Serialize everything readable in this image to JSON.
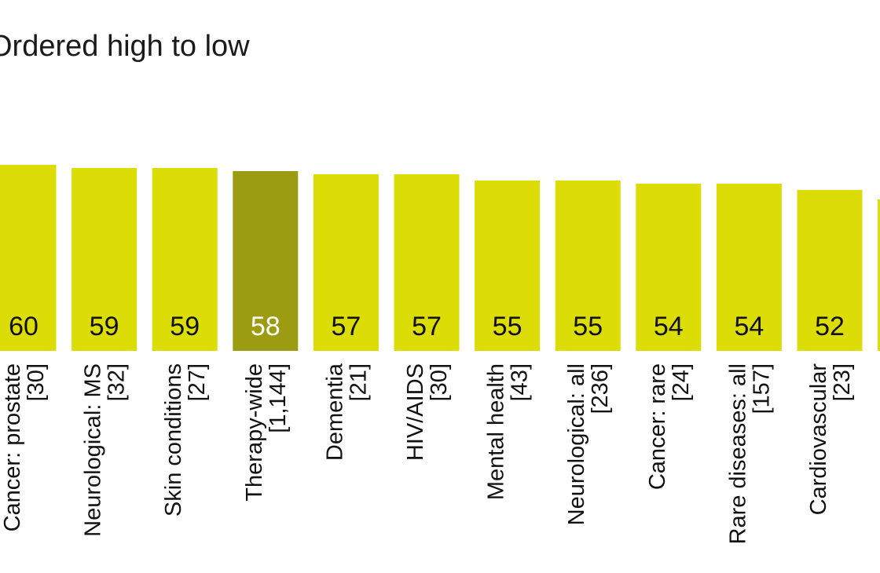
{
  "chart_data": {
    "type": "bar",
    "title": "Ordered high to low",
    "orientation": "vertical",
    "categories": [
      "Cancer: prostate",
      "Neurological: MS",
      "Skin conditions",
      "Therapy-wide",
      "Dementia",
      "HIV/AIDS",
      "Mental health",
      "Neurological: all",
      "Cancer: rare",
      "Rare diseases: all",
      "Cardiovascular"
    ],
    "counts": [
      "[30]",
      "[32]",
      "[27]",
      "[1,144]",
      "[21]",
      "[30]",
      "[43]",
      "[236]",
      "[24]",
      "[157]",
      "[23]"
    ],
    "values": [
      60,
      59,
      59,
      58,
      57,
      57,
      55,
      55,
      54,
      54,
      52
    ],
    "highlight_category": "Therapy-wide",
    "colors": {
      "bar": "#dcdc06",
      "highlight": "#9c9c12",
      "label": "#111111",
      "highlight_label": "#ffffff"
    },
    "grid": false,
    "legend": "none"
  }
}
